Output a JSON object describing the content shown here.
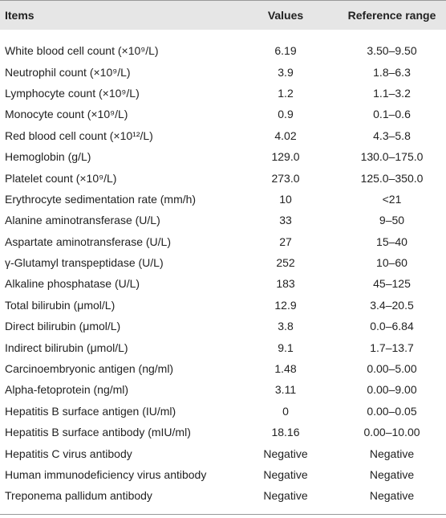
{
  "table": {
    "header": [
      "Items",
      "Values",
      "Reference range"
    ],
    "rows": [
      [
        "White blood cell count (×10⁹/L)",
        "6.19",
        "3.50–9.50"
      ],
      [
        "Neutrophil count (×10⁹/L)",
        "3.9",
        "1.8–6.3"
      ],
      [
        "Lymphocyte count (×10⁹/L)",
        "1.2",
        "1.1–3.2"
      ],
      [
        "Monocyte count (×10⁹/L)",
        "0.9",
        "0.1–0.6"
      ],
      [
        "Red blood cell count (×10¹²/L)",
        "4.02",
        "4.3–5.8"
      ],
      [
        "Hemoglobin (g/L)",
        "129.0",
        "130.0–175.0"
      ],
      [
        "Platelet count (×10⁹/L)",
        "273.0",
        "125.0–350.0"
      ],
      [
        "Erythrocyte sedimentation rate (mm/h)",
        "10",
        "<21"
      ],
      [
        "Alanine aminotransferase (U/L)",
        "33",
        "9–50"
      ],
      [
        "Aspartate aminotransferase (U/L)",
        "27",
        "15–40"
      ],
      [
        "γ-Glutamyl transpeptidase (U/L)",
        "252",
        "10–60"
      ],
      [
        "Alkaline phosphatase (U/L)",
        "183",
        "45–125"
      ],
      [
        "Total bilirubin (μmol/L)",
        "12.9",
        "3.4–20.5"
      ],
      [
        "Direct bilirubin (μmol/L)",
        "3.8",
        "0.0–6.84"
      ],
      [
        "Indirect bilirubin (μmol/L)",
        "9.1",
        "1.7–13.7"
      ],
      [
        "Carcinoembryonic antigen (ng/ml)",
        "1.48",
        "0.00–5.00"
      ],
      [
        "Alpha-fetoprotein (ng/ml)",
        "3.11",
        "0.00–9.00"
      ],
      [
        "Hepatitis B surface antigen (IU/ml)",
        "0",
        "0.00–0.05"
      ],
      [
        "Hepatitis B surface antibody (mIU/ml)",
        "18.16",
        "0.00–10.00"
      ],
      [
        "Hepatitis C virus antibody",
        "Negative",
        "Negative"
      ],
      [
        "Human immunodeficiency virus antibody",
        "Negative",
        "Negative"
      ],
      [
        "Treponema pallidum antibody",
        "Negative",
        "Negative"
      ]
    ]
  }
}
